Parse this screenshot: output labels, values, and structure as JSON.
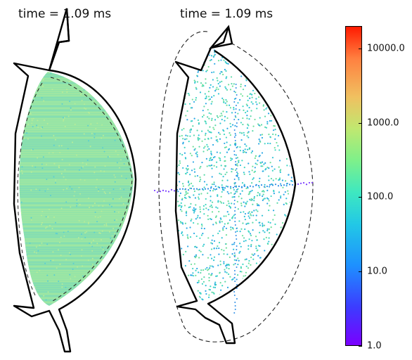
{
  "chart_data": {
    "type": "scatter",
    "panels": [
      {
        "title": "time = 1.09 ms",
        "description_of_fill": "dense"
      },
      {
        "title": "time = 1.09 ms",
        "description_of_fill": "sparse"
      }
    ],
    "colorbar": {
      "scale": "log",
      "range": [
        1,
        20000
      ],
      "colormap": "rainbow",
      "ticks": [
        {
          "value": 1,
          "label": "1.0"
        },
        {
          "value": 10,
          "label": "10.0"
        },
        {
          "value": 100,
          "label": "100.0"
        },
        {
          "value": 1000,
          "label": "1000.0"
        },
        {
          "value": 10000,
          "label": "10000.0"
        }
      ]
    },
    "grid": false
  }
}
